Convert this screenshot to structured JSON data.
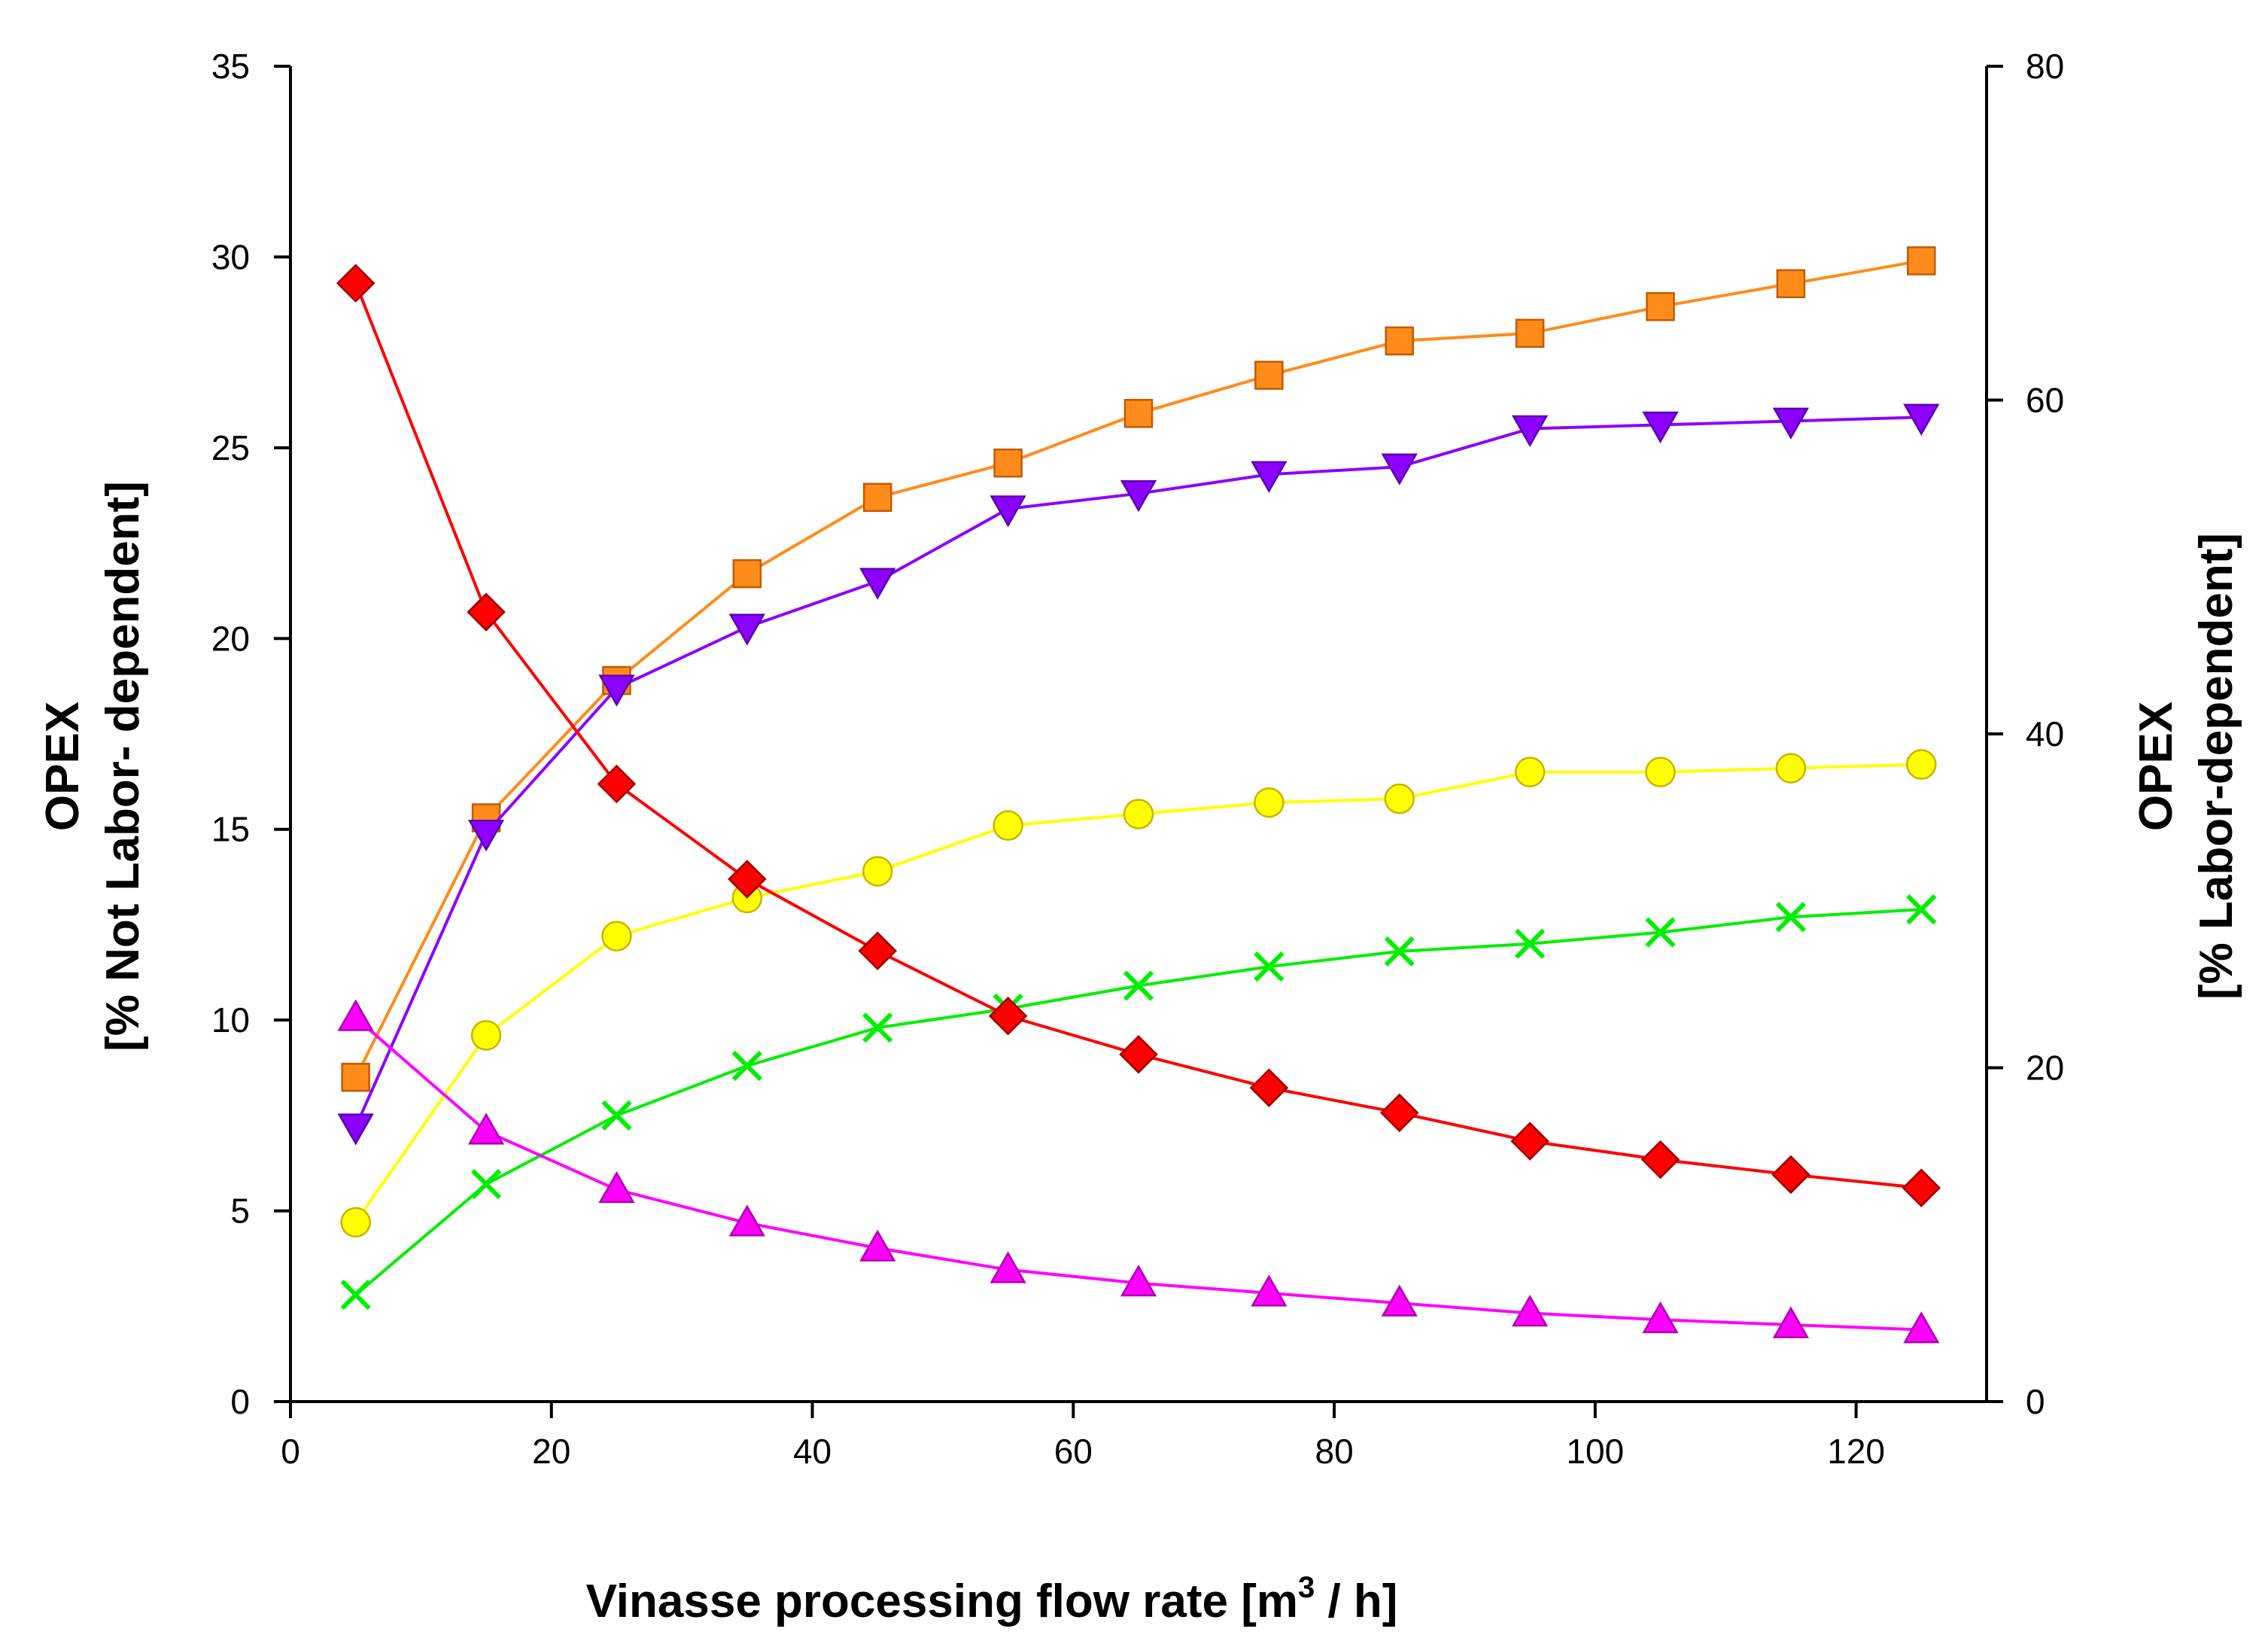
{
  "chart_data": {
    "type": "line",
    "title": "",
    "xlabel": {
      "prefix": "Vinasse processing flow rate [m",
      "superscript": "3",
      "suffix": " / h]"
    },
    "ylabel_left": {
      "line1": "OPEX",
      "line2": "[% Not Labor- dependent]"
    },
    "ylabel_right": {
      "line1": "OPEX",
      "line2": "[% Labor-dependent]"
    },
    "xlim": [
      0,
      130
    ],
    "ylim_left": [
      0,
      35
    ],
    "ylim_right": [
      0,
      80
    ],
    "x_ticks": [
      0,
      20,
      40,
      60,
      80,
      100,
      120
    ],
    "y_ticks_left": [
      0,
      5,
      10,
      15,
      20,
      25,
      30,
      35
    ],
    "y_ticks_right": [
      0,
      20,
      40,
      60,
      80
    ],
    "grid": false,
    "legend": "none",
    "x": [
      5,
      15,
      25,
      35,
      45,
      55,
      65,
      75,
      85,
      95,
      105,
      115,
      125
    ],
    "series": [
      {
        "name": "orange squares",
        "marker": "square",
        "color": "#ff8c1a",
        "axis": "left",
        "values": [
          8.5,
          15.3,
          18.9,
          21.7,
          23.7,
          24.6,
          25.9,
          26.9,
          27.8,
          28.0,
          28.7,
          29.3,
          29.9
        ]
      },
      {
        "name": "purple down-triangles",
        "marker": "triangle-down",
        "color": "#8b00ff",
        "axis": "left",
        "values": [
          7.2,
          14.9,
          18.7,
          20.3,
          21.5,
          23.4,
          23.8,
          24.3,
          24.5,
          25.5,
          25.6,
          25.7,
          25.8
        ]
      },
      {
        "name": "yellow circles",
        "marker": "circle",
        "color": "#ffff00",
        "axis": "left",
        "values": [
          4.7,
          9.6,
          12.2,
          13.2,
          13.9,
          15.1,
          15.4,
          15.7,
          15.8,
          16.5,
          16.5,
          16.6,
          16.7
        ]
      },
      {
        "name": "green crosses",
        "marker": "x",
        "color": "#00ee00",
        "axis": "left",
        "values": [
          2.8,
          5.7,
          7.5,
          8.8,
          9.8,
          10.3,
          10.9,
          11.4,
          11.8,
          12.0,
          12.3,
          12.7,
          12.9
        ]
      },
      {
        "name": "red diamonds",
        "marker": "diamond",
        "color": "#ff0000",
        "axis": "right",
        "values": [
          67.0,
          47.3,
          37.0,
          31.3,
          27.0,
          23.1,
          20.8,
          18.8,
          17.3,
          15.6,
          14.5,
          13.6,
          12.8
        ]
      },
      {
        "name": "magenta triangles",
        "marker": "triangle-up",
        "color": "#ff00ff",
        "axis": "right",
        "values": [
          23.0,
          16.2,
          12.7,
          10.7,
          9.2,
          7.9,
          7.1,
          6.5,
          5.9,
          5.3,
          4.9,
          4.6,
          4.3
        ]
      }
    ]
  }
}
